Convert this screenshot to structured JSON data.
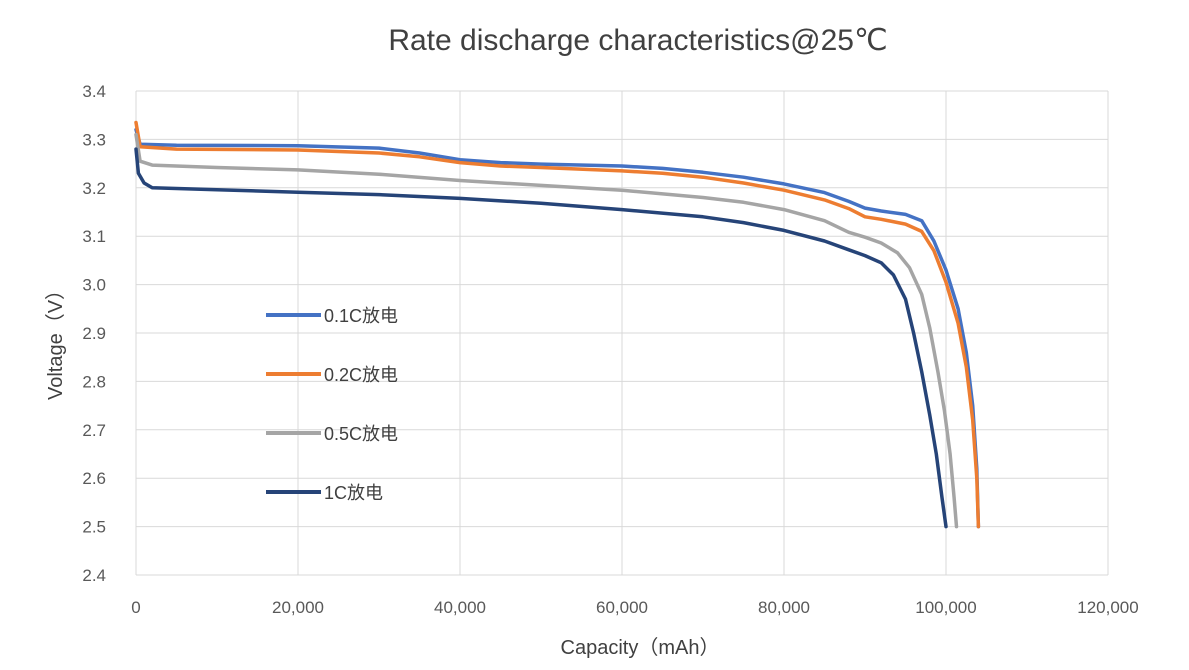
{
  "chart_data": {
    "type": "line",
    "title": "Rate discharge characteristics@25℃",
    "xlabel": "Capacity（mAh）",
    "ylabel": "Voltage（V）",
    "xlim": [
      0,
      120000
    ],
    "ylim": [
      2.4,
      3.4
    ],
    "x_ticks": [
      0,
      20000,
      40000,
      60000,
      80000,
      100000,
      120000
    ],
    "x_tick_labels": [
      "0",
      "20,000",
      "40,000",
      "60,000",
      "80,000",
      "100,000",
      "120,000"
    ],
    "y_ticks": [
      2.4,
      2.5,
      2.6,
      2.7,
      2.8,
      2.9,
      3.0,
      3.1,
      3.2,
      3.3,
      3.4
    ],
    "y_tick_labels": [
      "2.4",
      "2.5",
      "2.6",
      "2.7",
      "2.8",
      "2.9",
      "3.0",
      "3.1",
      "3.2",
      "3.3",
      "3.4"
    ],
    "grid": true,
    "legend_position": "left-middle",
    "series": [
      {
        "name": "0.1C放电",
        "color": "#4472C4",
        "points": [
          [
            0,
            3.32
          ],
          [
            500,
            3.29
          ],
          [
            5000,
            3.288
          ],
          [
            20000,
            3.287
          ],
          [
            30000,
            3.282
          ],
          [
            35000,
            3.272
          ],
          [
            40000,
            3.258
          ],
          [
            45000,
            3.252
          ],
          [
            50000,
            3.249
          ],
          [
            60000,
            3.245
          ],
          [
            65000,
            3.24
          ],
          [
            70000,
            3.232
          ],
          [
            75000,
            3.222
          ],
          [
            80000,
            3.208
          ],
          [
            85000,
            3.19
          ],
          [
            88000,
            3.172
          ],
          [
            90000,
            3.158
          ],
          [
            92000,
            3.152
          ],
          [
            95000,
            3.145
          ],
          [
            97000,
            3.132
          ],
          [
            98500,
            3.09
          ],
          [
            100000,
            3.03
          ],
          [
            101500,
            2.95
          ],
          [
            102500,
            2.86
          ],
          [
            103300,
            2.75
          ],
          [
            103800,
            2.62
          ],
          [
            104000,
            2.5
          ]
        ]
      },
      {
        "name": "0.2C放电",
        "color": "#ED7D31",
        "points": [
          [
            0,
            3.335
          ],
          [
            500,
            3.285
          ],
          [
            5000,
            3.28
          ],
          [
            20000,
            3.278
          ],
          [
            30000,
            3.272
          ],
          [
            35000,
            3.264
          ],
          [
            40000,
            3.252
          ],
          [
            45000,
            3.245
          ],
          [
            50000,
            3.242
          ],
          [
            60000,
            3.235
          ],
          [
            65000,
            3.23
          ],
          [
            70000,
            3.222
          ],
          [
            75000,
            3.21
          ],
          [
            80000,
            3.195
          ],
          [
            85000,
            3.175
          ],
          [
            88000,
            3.157
          ],
          [
            90000,
            3.14
          ],
          [
            92000,
            3.135
          ],
          [
            95000,
            3.125
          ],
          [
            97000,
            3.11
          ],
          [
            98500,
            3.07
          ],
          [
            100000,
            3.005
          ],
          [
            101500,
            2.92
          ],
          [
            102500,
            2.83
          ],
          [
            103300,
            2.72
          ],
          [
            103800,
            2.6
          ],
          [
            104000,
            2.5
          ]
        ]
      },
      {
        "name": "0.5C放电",
        "color": "#A5A5A5",
        "points": [
          [
            0,
            3.31
          ],
          [
            500,
            3.255
          ],
          [
            2000,
            3.247
          ],
          [
            10000,
            3.242
          ],
          [
            20000,
            3.237
          ],
          [
            30000,
            3.228
          ],
          [
            40000,
            3.215
          ],
          [
            50000,
            3.205
          ],
          [
            60000,
            3.195
          ],
          [
            70000,
            3.18
          ],
          [
            75000,
            3.17
          ],
          [
            80000,
            3.155
          ],
          [
            85000,
            3.132
          ],
          [
            88000,
            3.108
          ],
          [
            90000,
            3.098
          ],
          [
            92000,
            3.086
          ],
          [
            94000,
            3.066
          ],
          [
            95500,
            3.035
          ],
          [
            97000,
            2.98
          ],
          [
            98000,
            2.91
          ],
          [
            99000,
            2.82
          ],
          [
            99800,
            2.74
          ],
          [
            100500,
            2.65
          ],
          [
            101000,
            2.56
          ],
          [
            101300,
            2.5
          ]
        ]
      },
      {
        "name": "1C放电",
        "color": "#264478",
        "points": [
          [
            0,
            3.28
          ],
          [
            300,
            3.23
          ],
          [
            1000,
            3.21
          ],
          [
            2000,
            3.2
          ],
          [
            10000,
            3.196
          ],
          [
            20000,
            3.191
          ],
          [
            30000,
            3.186
          ],
          [
            40000,
            3.178
          ],
          [
            50000,
            3.168
          ],
          [
            60000,
            3.155
          ],
          [
            70000,
            3.14
          ],
          [
            75000,
            3.128
          ],
          [
            80000,
            3.112
          ],
          [
            85000,
            3.09
          ],
          [
            88000,
            3.072
          ],
          [
            90000,
            3.06
          ],
          [
            92000,
            3.045
          ],
          [
            93500,
            3.02
          ],
          [
            95000,
            2.97
          ],
          [
            96000,
            2.9
          ],
          [
            97000,
            2.82
          ],
          [
            98000,
            2.73
          ],
          [
            98800,
            2.65
          ],
          [
            99500,
            2.56
          ],
          [
            100000,
            2.5
          ]
        ]
      }
    ]
  }
}
